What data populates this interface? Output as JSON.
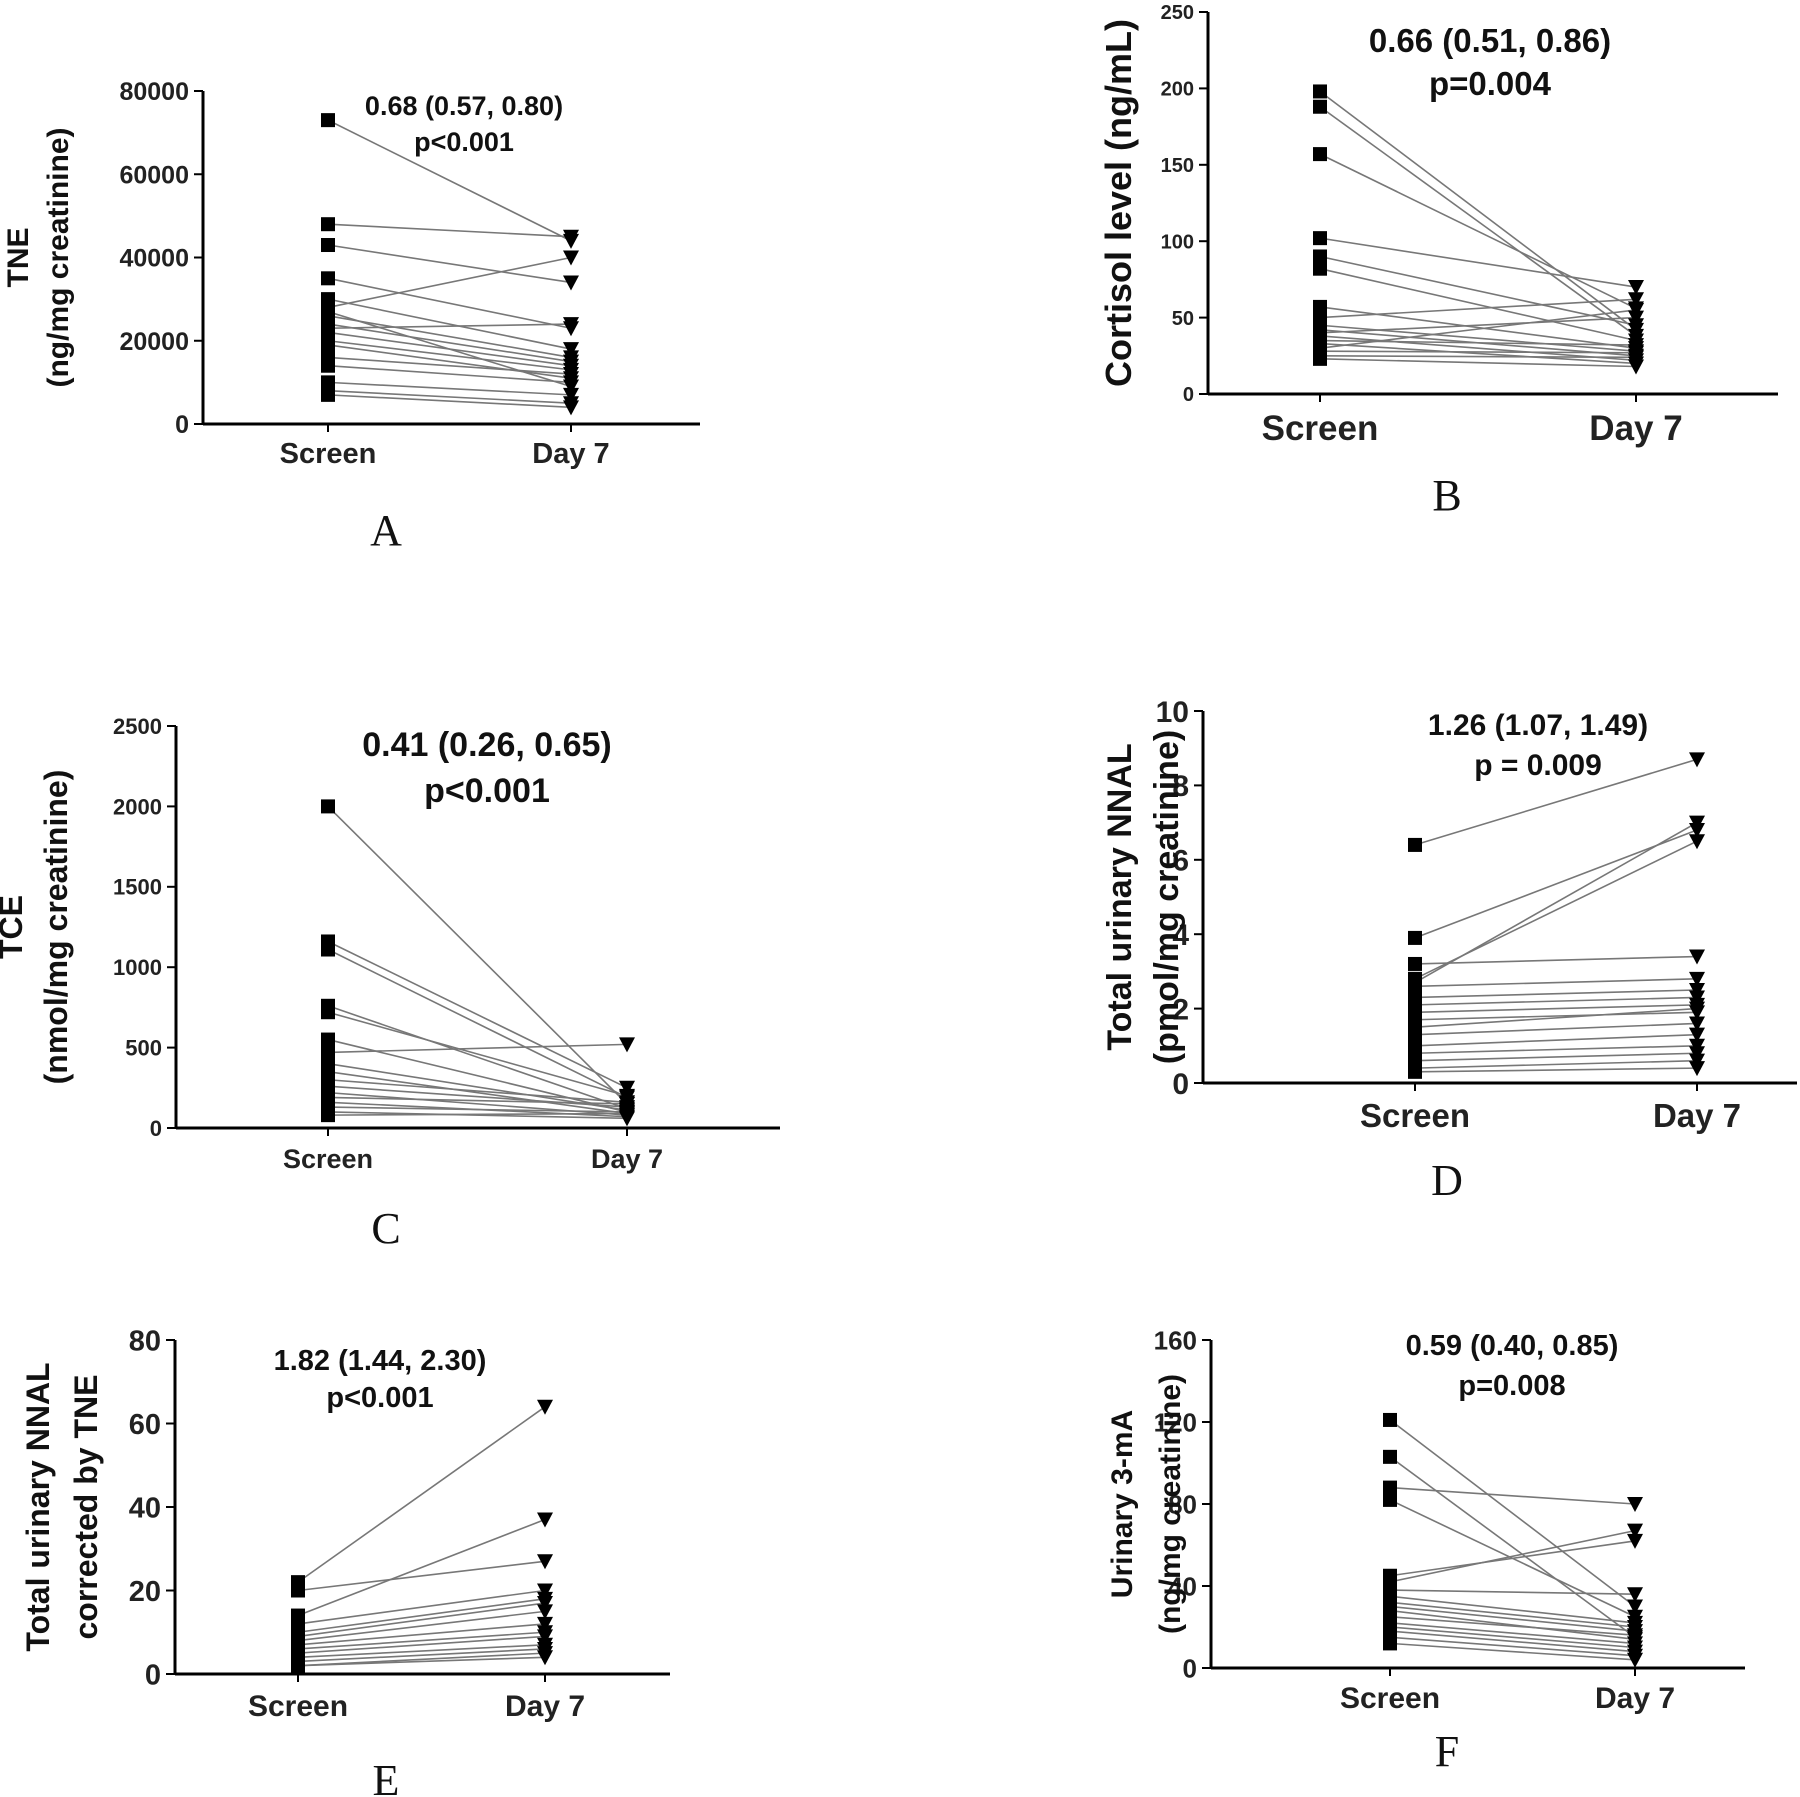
{
  "chart_data": [
    {
      "panel": "A",
      "type": "line",
      "categories": [
        "Screen",
        "Day 7"
      ],
      "ylabel": [
        "TNE",
        "(ng/mg creatinine)"
      ],
      "ylim": [
        0,
        80000
      ],
      "yticks": [
        0,
        20000,
        40000,
        60000,
        80000
      ],
      "annotation": [
        "0.68 (0.57, 0.80)",
        "p<0.001"
      ],
      "screen": [
        73000,
        48000,
        43000,
        35000,
        28000,
        26000,
        24000,
        22000,
        20000,
        16000,
        14000,
        10000,
        8000,
        7000,
        23000,
        30000,
        19000,
        27000
      ],
      "day7": [
        44000,
        45000,
        34000,
        23000,
        40000,
        16000,
        15000,
        14000,
        13000,
        12000,
        10000,
        7000,
        5000,
        4000,
        24000,
        18000,
        11000,
        9000
      ]
    },
    {
      "panel": "B",
      "type": "line",
      "categories": [
        "Screen",
        "Day 7"
      ],
      "ylabel": [
        "Cortisol level (ng/mL)"
      ],
      "ylim": [
        0,
        250
      ],
      "yticks": [
        0,
        50,
        100,
        150,
        200,
        250
      ],
      "annotation": [
        "0.66 (0.51, 0.86)",
        "p=0.004"
      ],
      "screen": [
        198,
        188,
        157,
        102,
        90,
        82,
        57,
        50,
        45,
        42,
        40,
        38,
        35,
        33,
        30,
        28,
        25,
        23
      ],
      "day7": [
        42,
        38,
        56,
        70,
        45,
        35,
        30,
        62,
        28,
        25,
        50,
        22,
        32,
        20,
        55,
        27,
        24,
        18
      ]
    },
    {
      "panel": "C",
      "type": "line",
      "categories": [
        "Screen",
        "Day 7"
      ],
      "ylabel": [
        "TCE",
        "(nmol/mg creatinine)"
      ],
      "ylim": [
        0,
        2500
      ],
      "yticks": [
        0,
        500,
        1000,
        1500,
        2000,
        2500
      ],
      "annotation": [
        "0.41 (0.26, 0.65)",
        "p<0.001"
      ],
      "screen": [
        2000,
        1160,
        1110,
        760,
        720,
        550,
        470,
        400,
        350,
        300,
        260,
        220,
        190,
        160,
        130,
        100,
        80
      ],
      "day7": [
        150,
        250,
        190,
        120,
        200,
        100,
        520,
        110,
        90,
        160,
        130,
        80,
        150,
        70,
        100,
        60,
        90
      ]
    },
    {
      "panel": "D",
      "type": "line",
      "categories": [
        "Screen",
        "Day 7"
      ],
      "ylabel": [
        "Total urinary NNAL",
        "(pmol/mg creatinine)"
      ],
      "ylim": [
        0,
        10
      ],
      "yticks": [
        0,
        2,
        4,
        6,
        8,
        10
      ],
      "annotation": [
        "1.26 (1.07, 1.49)",
        "p = 0.009"
      ],
      "screen": [
        6.4,
        3.9,
        3.2,
        2.8,
        2.7,
        2.6,
        2.3,
        2.1,
        1.9,
        1.7,
        1.5,
        1.3,
        1.0,
        0.8,
        0.6,
        0.4,
        0.3
      ],
      "day7": [
        8.7,
        6.8,
        3.4,
        6.5,
        7.0,
        2.8,
        2.5,
        2.3,
        2.1,
        1.9,
        2.0,
        1.6,
        1.3,
        1.0,
        0.8,
        0.6,
        0.4
      ]
    },
    {
      "panel": "E",
      "type": "line",
      "categories": [
        "Screen",
        "Day 7"
      ],
      "ylabel": [
        "Total urinary NNAL",
        "corrected by TNE"
      ],
      "ylim": [
        0,
        80
      ],
      "yticks": [
        0,
        20,
        40,
        60,
        80
      ],
      "annotation": [
        "1.82 (1.44, 2.30)",
        "p<0.001"
      ],
      "screen": [
        22,
        20,
        14,
        12,
        10,
        9,
        8,
        7,
        6,
        5,
        4,
        3,
        2,
        2
      ],
      "day7": [
        64,
        27,
        37,
        20,
        18,
        17,
        15,
        12,
        10,
        9,
        7,
        6,
        5,
        4
      ]
    },
    {
      "panel": "F",
      "type": "line",
      "categories": [
        "Screen",
        "Day 7"
      ],
      "ylabel": [
        "Urinary 3-mA",
        "(ng/mg creatinine)"
      ],
      "ylim": [
        0,
        160
      ],
      "yticks": [
        0,
        40,
        80,
        120,
        160
      ],
      "annotation": [
        "0.59 (0.40, 0.85)",
        "p=0.008"
      ],
      "screen": [
        121,
        103,
        88,
        82,
        45,
        42,
        38,
        35,
        32,
        30,
        28,
        25,
        22,
        20,
        18,
        15,
        12
      ],
      "day7": [
        30,
        15,
        80,
        25,
        62,
        67,
        36,
        22,
        20,
        18,
        14,
        16,
        12,
        10,
        8,
        6,
        4
      ]
    }
  ]
}
